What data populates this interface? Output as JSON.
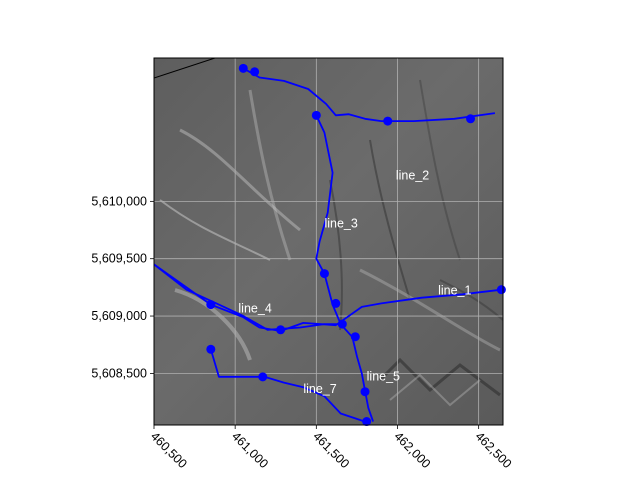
{
  "chart_data": {
    "type": "map",
    "xlim": [
      460500,
      462650
    ],
    "ylim": [
      5608050,
      5611250
    ],
    "x_ticks": [
      {
        "value": 460500,
        "label": "460,500"
      },
      {
        "value": 461000,
        "label": "461,000"
      },
      {
        "value": 461500,
        "label": "461,500"
      },
      {
        "value": 462000,
        "label": "462,000"
      },
      {
        "value": 462500,
        "label": "462,500"
      }
    ],
    "y_ticks": [
      {
        "value": 5608500,
        "label": "5,608,500"
      },
      {
        "value": 5609000,
        "label": "5,609,000"
      },
      {
        "value": 5609500,
        "label": "5,609,500"
      },
      {
        "value": 5610000,
        "label": "5,610,000"
      }
    ],
    "grid": true,
    "background": "grayscale hillshade terrain",
    "line_color": "#0000ff",
    "label_color": "#ffffff",
    "lines": [
      {
        "label": "line_1",
        "label_at": [
          462250,
          5609190
        ],
        "path": [
          [
            460500,
            5609450
          ],
          [
            460700,
            5609250
          ],
          [
            460850,
            5609100
          ],
          [
            461050,
            5608990
          ],
          [
            461150,
            5608900
          ],
          [
            461280,
            5608870
          ],
          [
            461420,
            5608940
          ],
          [
            461620,
            5608920
          ],
          [
            461780,
            5609080
          ],
          [
            461900,
            5609110
          ],
          [
            462150,
            5609160
          ],
          [
            462400,
            5609190
          ],
          [
            462640,
            5609230
          ]
        ],
        "points": [
          [
            460850,
            5609100
          ],
          [
            461620,
            5609110
          ],
          [
            462640,
            5609230
          ]
        ]
      },
      {
        "label": "line_2",
        "label_at": [
          461990,
          5610190
        ],
        "path": [
          [
            461050,
            5611160
          ],
          [
            461150,
            5611080
          ],
          [
            461300,
            5611050
          ],
          [
            461450,
            5610980
          ],
          [
            461560,
            5610850
          ],
          [
            461620,
            5610750
          ],
          [
            461700,
            5610760
          ],
          [
            461800,
            5610720
          ],
          [
            461900,
            5610700
          ],
          [
            462100,
            5610700
          ],
          [
            462350,
            5610720
          ],
          [
            462600,
            5610770
          ]
        ],
        "points": [
          [
            461050,
            5611160
          ],
          [
            461120,
            5611130
          ],
          [
            461940,
            5610700
          ],
          [
            462450,
            5610720
          ]
        ]
      },
      {
        "label": "line_3",
        "label_at": [
          461550,
          5609770
        ],
        "path": [
          [
            461500,
            5610750
          ],
          [
            461550,
            5610600
          ],
          [
            461600,
            5610250
          ],
          [
            461570,
            5609900
          ],
          [
            461520,
            5609650
          ],
          [
            461500,
            5609500
          ],
          [
            461550,
            5609370
          ],
          [
            461600,
            5609100
          ],
          [
            461650,
            5608930
          ],
          [
            461720,
            5608820
          ]
        ],
        "points": [
          [
            461500,
            5610750
          ],
          [
            461550,
            5609370
          ],
          [
            461660,
            5608930
          ]
        ]
      },
      {
        "label": "line_4",
        "label_at": [
          461020,
          5609030
        ],
        "path": [
          [
            460500,
            5609450
          ],
          [
            460700,
            5609230
          ],
          [
            460900,
            5609100
          ],
          [
            461050,
            5609000
          ],
          [
            461200,
            5608880
          ],
          [
            461400,
            5608900
          ],
          [
            461550,
            5608930
          ],
          [
            461680,
            5608930
          ]
        ],
        "points": [
          [
            461280,
            5608880
          ]
        ]
      },
      {
        "label": "line_5",
        "label_at": [
          461810,
          5608440
        ],
        "path": [
          [
            461720,
            5608830
          ],
          [
            461750,
            5608650
          ],
          [
            461780,
            5608500
          ],
          [
            461800,
            5608350
          ],
          [
            461820,
            5608200
          ],
          [
            461850,
            5608080
          ]
        ],
        "points": [
          [
            461740,
            5608820
          ],
          [
            461800,
            5608340
          ]
        ]
      },
      {
        "label": "line_7",
        "label_at": [
          461420,
          5608330
        ],
        "path": [
          [
            460850,
            5608710
          ],
          [
            460900,
            5608470
          ],
          [
            461030,
            5608470
          ],
          [
            461180,
            5608470
          ],
          [
            461300,
            5608420
          ],
          [
            461420,
            5608380
          ],
          [
            461550,
            5608300
          ],
          [
            461650,
            5608150
          ],
          [
            461800,
            5608080
          ]
        ],
        "points": [
          [
            460850,
            5608710
          ],
          [
            461170,
            5608470
          ],
          [
            461810,
            5608080
          ]
        ]
      }
    ]
  }
}
